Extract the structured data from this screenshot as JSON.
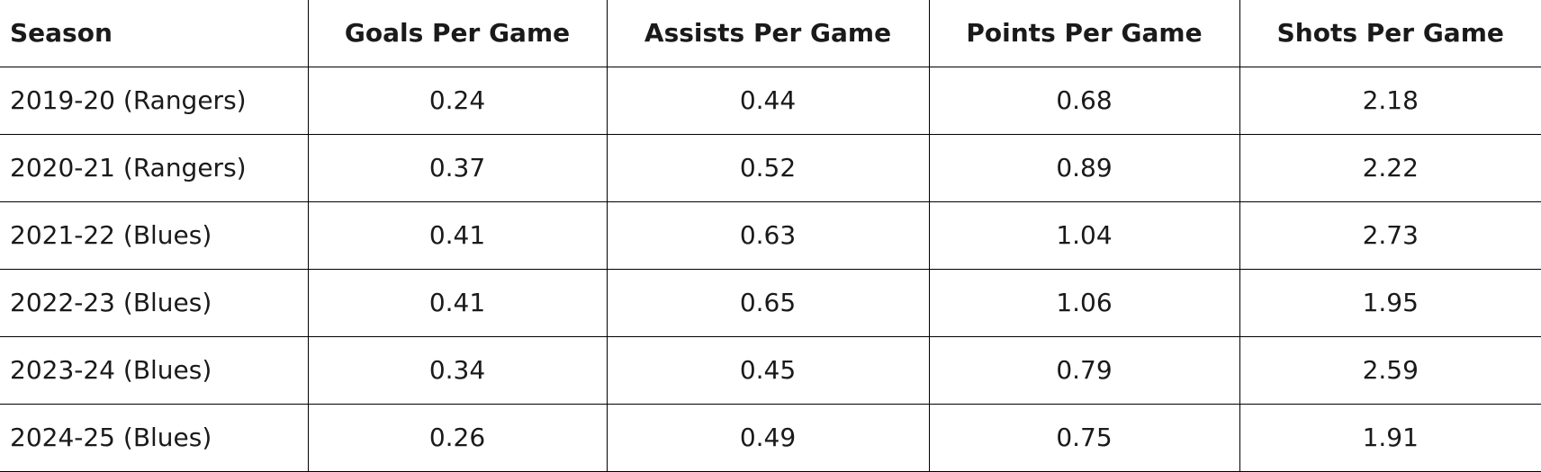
{
  "table": {
    "headers": [
      "Season",
      "Goals Per Game",
      "Assists Per Game",
      "Points Per Game",
      "Shots Per Game"
    ],
    "rows": [
      [
        "2019-20 (Rangers)",
        "0.24",
        "0.44",
        "0.68",
        "2.18"
      ],
      [
        "2020-21 (Rangers)",
        "0.37",
        "0.52",
        "0.89",
        "2.22"
      ],
      [
        "2021-22 (Blues)",
        "0.41",
        "0.63",
        "1.04",
        "2.73"
      ],
      [
        "2022-23 (Blues)",
        "0.41",
        "0.65",
        "1.06",
        "1.95"
      ],
      [
        "2023-24 (Blues)",
        "0.34",
        "0.45",
        "0.79",
        "2.59"
      ],
      [
        "2024-25 (Blues)",
        "0.26",
        "0.49",
        "0.75",
        "1.91"
      ]
    ]
  }
}
